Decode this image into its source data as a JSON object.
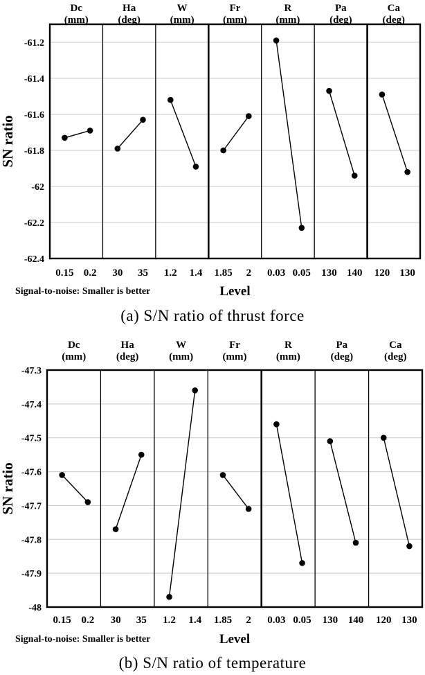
{
  "figure": {
    "description": "Main effects plots for S/N ratios",
    "ylabel": "SN ratio",
    "xlabel": "Level",
    "footnote": "Signal-to-noise: Smaller is better"
  },
  "colors": {
    "text": "#000000",
    "point": "#000000",
    "line": "#000000",
    "grid": "#c8c8c8",
    "border": "#000000",
    "background": "#ffffff"
  },
  "chart_data": [
    {
      "type": "line",
      "subtype": "main-effects-plot",
      "title": "(a) S/N ratio of thrust force",
      "ylabel": "SN ratio",
      "xlabel": "Level",
      "footnote": "Signal-to-noise: Smaller is better",
      "grid": true,
      "ylim": [
        -62.4,
        -61.1
      ],
      "ytick_values": [
        -61.2,
        -61.4,
        -61.6,
        -61.8,
        -62,
        -62.2,
        -62.4
      ],
      "ytick_labels": [
        "-61.2",
        "-61.4",
        "-61.6",
        "-61.8",
        "-62",
        "-62.2",
        "-62.4"
      ],
      "panels": [
        {
          "factor": "Dc",
          "unit": "(mm)",
          "levels": [
            "0.15",
            "0.2"
          ],
          "values": [
            -61.73,
            -61.69
          ]
        },
        {
          "factor": "Ha",
          "unit": "(deg)",
          "levels": [
            "30",
            "35"
          ],
          "values": [
            -61.79,
            -61.63
          ]
        },
        {
          "factor": "W",
          "unit": "(mm)",
          "levels": [
            "1.2",
            "1.4"
          ],
          "values": [
            -61.52,
            -61.89
          ]
        },
        {
          "factor": "Fr",
          "unit": "(mm)",
          "levels": [
            "1.85",
            "2"
          ],
          "values": [
            -61.8,
            -61.61
          ]
        },
        {
          "factor": "R",
          "unit": "(mm)",
          "levels": [
            "0.03",
            "0.05"
          ],
          "values": [
            -61.19,
            -62.23
          ]
        },
        {
          "factor": "Pa",
          "unit": "(deg)",
          "levels": [
            "130",
            "140"
          ],
          "values": [
            -61.47,
            -61.94
          ]
        },
        {
          "factor": "Ca",
          "unit": "(deg)",
          "levels": [
            "120",
            "130"
          ],
          "values": [
            -61.49,
            -61.92
          ]
        }
      ],
      "thick_divider_after": [
        3,
        6
      ]
    },
    {
      "type": "line",
      "subtype": "main-effects-plot",
      "title": "(b) S/N ratio of temperature",
      "ylabel": "SN ratio",
      "xlabel": "Level",
      "footnote": "Signal-to-noise: Smaller is better",
      "grid": true,
      "ylim": [
        -48,
        -47.3
      ],
      "ytick_values": [
        -47.3,
        -47.4,
        -47.5,
        -47.6,
        -47.7,
        -47.8,
        -47.9,
        -48
      ],
      "ytick_labels": [
        "-47.3",
        "-47.4",
        "-47.5",
        "-47.6",
        "-47.7",
        "-47.8",
        "-47.9",
        "-48"
      ],
      "panels": [
        {
          "factor": "Dc",
          "unit": "(mm)",
          "levels": [
            "0.15",
            "0.2"
          ],
          "values": [
            -47.61,
            -47.69
          ]
        },
        {
          "factor": "Ha",
          "unit": "(deg)",
          "levels": [
            "30",
            "35"
          ],
          "values": [
            -47.77,
            -47.55
          ]
        },
        {
          "factor": "W",
          "unit": "(mm)",
          "levels": [
            "1.2",
            "1.4"
          ],
          "values": [
            -47.97,
            -47.36
          ]
        },
        {
          "factor": "Fr",
          "unit": "(mm)",
          "levels": [
            "1.85",
            "2"
          ],
          "values": [
            -47.61,
            -47.71
          ]
        },
        {
          "factor": "R",
          "unit": "(mm)",
          "levels": [
            "0.03",
            "0.05"
          ],
          "values": [
            -47.46,
            -47.87
          ]
        },
        {
          "factor": "Pa",
          "unit": "(deg)",
          "levels": [
            "130",
            "140"
          ],
          "values": [
            -47.51,
            -47.81
          ]
        },
        {
          "factor": "Ca",
          "unit": "(deg)",
          "levels": [
            "120",
            "130"
          ],
          "values": [
            -47.5,
            -47.82
          ]
        }
      ],
      "thick_divider_after": [
        4
      ]
    }
  ]
}
